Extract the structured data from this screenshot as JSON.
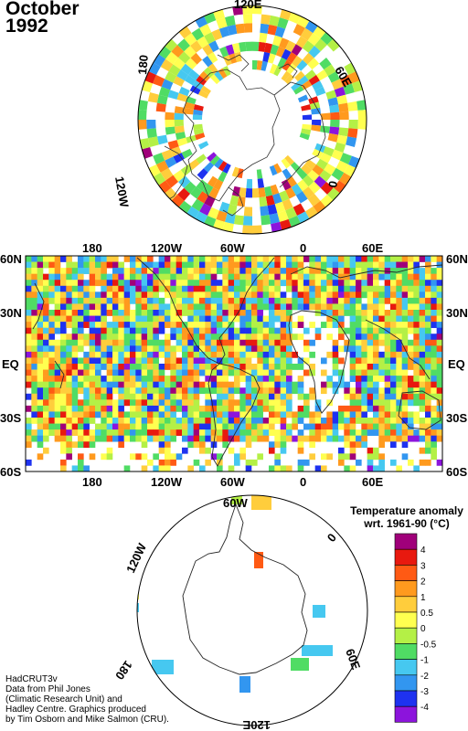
{
  "title": {
    "month": "October",
    "year": "1992"
  },
  "north_polar": {
    "labels": [
      {
        "text": "120E"
      },
      {
        "text": "60E"
      },
      {
        "text": "0"
      },
      {
        "text": "120W"
      },
      {
        "text": "180"
      }
    ]
  },
  "main_map": {
    "top_lon_labels": [
      "180",
      "120W",
      "60W",
      "0",
      "60E"
    ],
    "bottom_lon_labels": [
      "180",
      "120W",
      "60W",
      "0",
      "60E"
    ],
    "lat_labels": [
      "60N",
      "30N",
      "EQ",
      "30S",
      "60S"
    ]
  },
  "south_polar": {
    "labels": [
      {
        "text": "60W"
      },
      {
        "text": "0"
      },
      {
        "text": "60E"
      },
      {
        "text": "120E"
      },
      {
        "text": "180"
      },
      {
        "text": "120W"
      }
    ]
  },
  "legend": {
    "title_line1": "Temperature anomaly",
    "title_line2": "wrt. 1961-90  (°C)",
    "levels": [
      {
        "label": "4",
        "color": "#a0007a"
      },
      {
        "label": "3",
        "color": "#e8190f"
      },
      {
        "label": "2",
        "color": "#ff5a14"
      },
      {
        "label": "1",
        "color": "#ff9a1e"
      },
      {
        "label": "0.5",
        "color": "#ffcd3c"
      },
      {
        "label": "0",
        "color": "#ffff50"
      },
      {
        "label": "-0.5",
        "color": "#b4f046"
      },
      {
        "label": "-1",
        "color": "#50dc64"
      },
      {
        "label": "-2",
        "color": "#46c8f0"
      },
      {
        "label": "-3",
        "color": "#3296f0"
      },
      {
        "label": "-4",
        "color": "#1e32f0"
      },
      {
        "label": "",
        "color": "#8c14dc"
      }
    ]
  },
  "credits": [
    "HadCRUT3v",
    "Data from Phil Jones",
    "(Climatic Research Unit) and",
    "Hadley Centre.  Graphics produced",
    "by Tim Osborn and Mike Salmon (CRU)."
  ]
}
